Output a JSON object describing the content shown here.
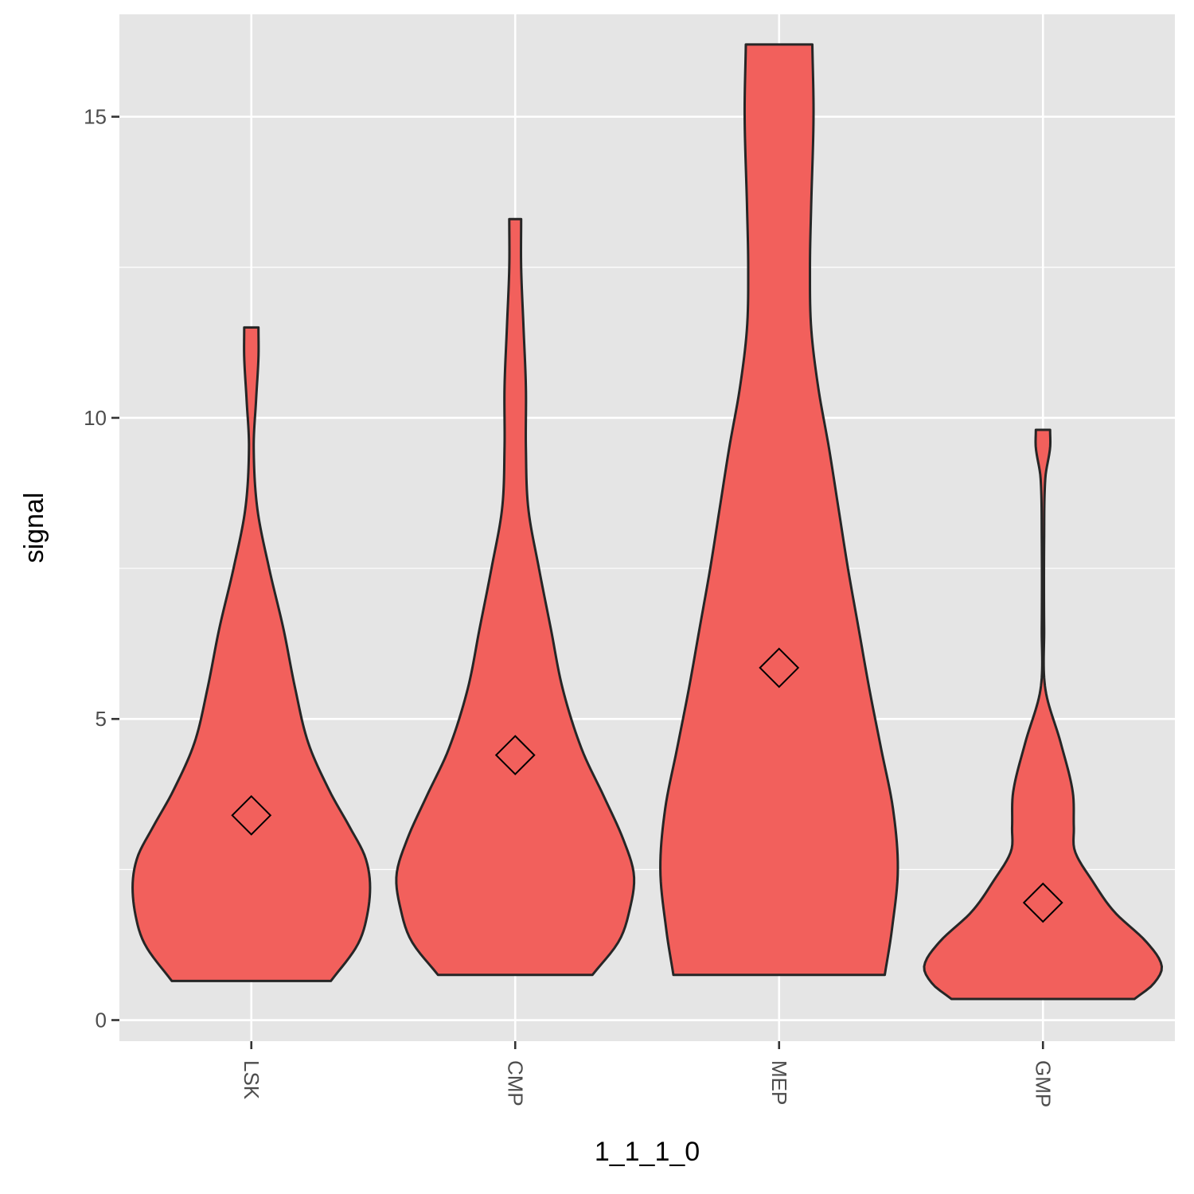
{
  "chart_data": {
    "type": "violin",
    "xlabel": "1_1_1_0",
    "ylabel": "signal",
    "ylim": [
      -0.35,
      16.7
    ],
    "yticks": [
      0,
      5,
      10,
      15
    ],
    "ytick_labels": [
      "0",
      "5",
      "10",
      "15"
    ],
    "y_minor_ticks": [
      2.5,
      7.5,
      12.5
    ],
    "grid": true,
    "x_tick_label_rotation": 90,
    "categories": [
      "LSK",
      "CMP",
      "MEP",
      "GMP"
    ],
    "mean_marker": "diamond",
    "colors": {
      "fill": "#F2605C",
      "outline": "#262626",
      "panel": "#E5E5E5",
      "grid": "#FFFFFF"
    },
    "series": [
      {
        "category": "LSK",
        "mean": 3.4,
        "min": 0.65,
        "max": 11.5,
        "density_profile": [
          [
            0.65,
            0.67
          ],
          [
            1.2,
            0.88
          ],
          [
            1.6,
            0.96
          ],
          [
            2.2,
            1.0
          ],
          [
            2.7,
            0.96
          ],
          [
            3.2,
            0.83
          ],
          [
            3.8,
            0.66
          ],
          [
            4.6,
            0.48
          ],
          [
            5.5,
            0.37
          ],
          [
            6.5,
            0.27
          ],
          [
            7.5,
            0.15
          ],
          [
            8.5,
            0.05
          ],
          [
            9.5,
            0.02
          ],
          [
            10.3,
            0.04
          ],
          [
            11.0,
            0.06
          ],
          [
            11.5,
            0.06
          ]
        ]
      },
      {
        "category": "CMP",
        "mean": 4.4,
        "min": 0.75,
        "max": 13.3,
        "density_profile": [
          [
            0.75,
            0.65
          ],
          [
            1.3,
            0.87
          ],
          [
            1.8,
            0.96
          ],
          [
            2.4,
            1.0
          ],
          [
            3.0,
            0.91
          ],
          [
            3.7,
            0.75
          ],
          [
            4.5,
            0.56
          ],
          [
            5.5,
            0.4
          ],
          [
            6.5,
            0.3
          ],
          [
            7.5,
            0.2
          ],
          [
            8.5,
            0.11
          ],
          [
            9.5,
            0.09
          ],
          [
            10.5,
            0.09
          ],
          [
            11.5,
            0.07
          ],
          [
            12.5,
            0.05
          ],
          [
            13.3,
            0.05
          ]
        ]
      },
      {
        "category": "MEP",
        "mean": 5.85,
        "min": 0.75,
        "max": 16.2,
        "density_profile": [
          [
            0.75,
            0.89
          ],
          [
            1.5,
            0.95
          ],
          [
            2.5,
            1.0
          ],
          [
            3.5,
            0.96
          ],
          [
            4.5,
            0.86
          ],
          [
            5.5,
            0.76
          ],
          [
            6.5,
            0.67
          ],
          [
            7.5,
            0.58
          ],
          [
            8.5,
            0.5
          ],
          [
            9.5,
            0.42
          ],
          [
            10.5,
            0.33
          ],
          [
            11.5,
            0.27
          ],
          [
            12.5,
            0.26
          ],
          [
            13.5,
            0.27
          ],
          [
            15.0,
            0.29
          ],
          [
            16.2,
            0.28
          ]
        ]
      },
      {
        "category": "GMP",
        "mean": 1.95,
        "min": 0.35,
        "max": 9.8,
        "density_profile": [
          [
            0.35,
            0.77
          ],
          [
            0.6,
            0.93
          ],
          [
            0.9,
            1.0
          ],
          [
            1.3,
            0.87
          ],
          [
            1.8,
            0.6
          ],
          [
            2.3,
            0.42
          ],
          [
            2.8,
            0.27
          ],
          [
            3.2,
            0.26
          ],
          [
            3.8,
            0.25
          ],
          [
            4.6,
            0.15
          ],
          [
            5.5,
            0.02
          ],
          [
            6.5,
            0.01
          ],
          [
            8.0,
            0.01
          ],
          [
            9.0,
            0.02
          ],
          [
            9.5,
            0.06
          ],
          [
            9.8,
            0.06
          ]
        ]
      }
    ]
  }
}
